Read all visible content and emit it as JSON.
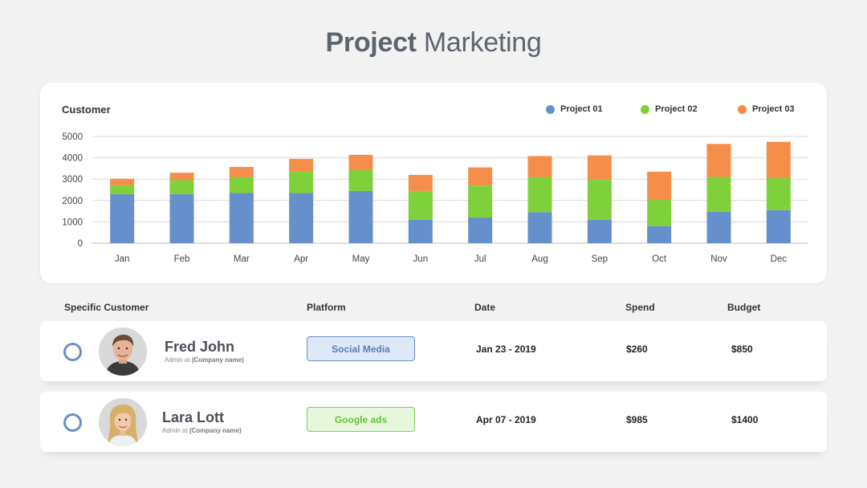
{
  "title": {
    "bold": "Project",
    "light": "Marketing"
  },
  "chart_data": {
    "type": "bar",
    "stacked": true,
    "title": "Customer",
    "categories": [
      "Jan",
      "Feb",
      "Mar",
      "Apr",
      "May",
      "Jun",
      "Jul",
      "Aug",
      "Sep",
      "Oct",
      "Nov",
      "Dec"
    ],
    "series": [
      {
        "name": "Project 01",
        "color": "#6690cc",
        "values": [
          2300,
          2300,
          2350,
          2350,
          2450,
          1100,
          1200,
          1450,
          1100,
          800,
          1480,
          1550
        ]
      },
      {
        "name": "Project 02",
        "color": "#7fd13b",
        "values": [
          420,
          650,
          750,
          1000,
          970,
          1350,
          1500,
          1650,
          1880,
          1250,
          1620,
          1500
        ]
      },
      {
        "name": "Project 03",
        "color": "#f58d4b",
        "values": [
          300,
          350,
          470,
          600,
          720,
          750,
          850,
          980,
          1130,
          1300,
          1550,
          1700
        ]
      }
    ],
    "ylim": [
      0,
      5000
    ],
    "yticks": [
      "5000",
      "4000",
      "3000",
      "2000",
      "1000",
      "0"
    ],
    "grid": true,
    "legend_position": "top-right"
  },
  "table": {
    "headers": {
      "customer": "Specific Customer",
      "platform": "Platform",
      "date": "Date",
      "spend": "Spend",
      "budget": "Budget"
    },
    "rows": [
      {
        "name": "Fred John",
        "role": "Admin at",
        "company": "(Company name)",
        "platform": "Social Media",
        "platform_color": "blue",
        "date": "Jan 23 - 2019",
        "spend": "$260",
        "budget": "$850"
      },
      {
        "name": "Lara Lott",
        "role": "Admin at",
        "company": "(Company name)",
        "platform": "Google ads",
        "platform_color": "green",
        "date": "Apr 07 - 2019",
        "spend": "$985",
        "budget": "$1400"
      }
    ]
  }
}
